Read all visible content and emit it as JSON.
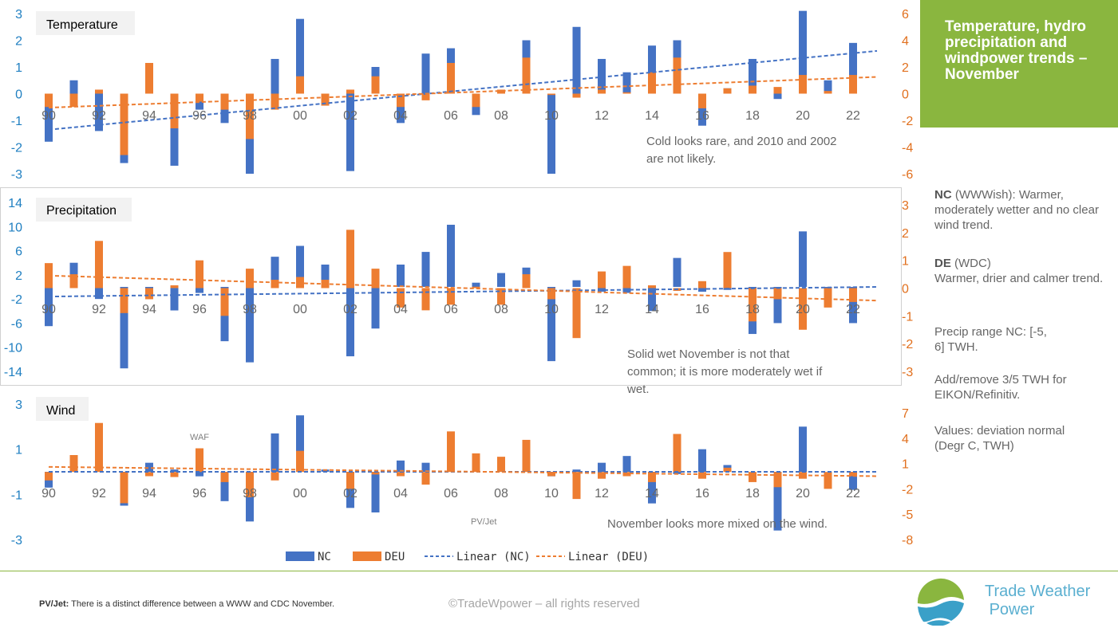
{
  "title_box": {
    "text": "Temperature, hydro precipitation and windpower trends – November"
  },
  "sidebar": {
    "nc_label": "NC",
    "nc_text": " (WWWish): Warmer, moderately wetter and no clear wind trend.",
    "de_label": "DE",
    "de_text": " (WDC)",
    "de_text2": "Warmer, drier and calmer trend.",
    "precip_range": "Precip range NC: [-5, 6] TWH.",
    "add_remove": "Add/remove 3/5 TWH for EIKON/Refinitiv.",
    "values_note": "Values: deviation normal (Degr C, TWH)"
  },
  "footer": {
    "pvjet_label": "PV/Jet:",
    "pvjet_text": " There is a distinct difference between a WWW and CDC November.",
    "copyright": "©TradeWpower – all rights reserved",
    "brand_line1": "Trade Weather",
    "brand_line2": "Power"
  },
  "legend": {
    "nc": "NC",
    "deu": "DEU",
    "lin_nc": "Linear (NC)",
    "lin_deu": "Linear (DEU)"
  },
  "colors": {
    "nc": "#4472c4",
    "deu": "#ed7d31",
    "accent": "#8ab63f",
    "left_axis": "#1f7fc1",
    "right_axis": "#e1701e"
  },
  "chart_data": [
    {
      "type": "bar",
      "title": "Temperature",
      "x_tick_labels": [
        "90",
        "92",
        "94",
        "96",
        "98",
        "00",
        "02",
        "04",
        "06",
        "08",
        "10",
        "12",
        "14",
        "16",
        "18",
        "20",
        "22"
      ],
      "years": [
        "90",
        "91",
        "92",
        "93",
        "94",
        "95",
        "96",
        "97",
        "98",
        "99",
        "00",
        "01",
        "02",
        "03",
        "04",
        "05",
        "06",
        "07",
        "08",
        "09",
        "10",
        "11",
        "12",
        "13",
        "14",
        "15",
        "16",
        "17",
        "18",
        "19",
        "20",
        "21",
        "22"
      ],
      "left_ticks": [
        "3",
        "2",
        "1",
        "0",
        "-1",
        "-2",
        "-3"
      ],
      "right_ticks": [
        "6",
        "4",
        "2",
        "0",
        "-2",
        "-4",
        "-6"
      ],
      "ylim_left": [
        -3,
        3
      ],
      "ylim_right": [
        -6,
        6
      ],
      "series": [
        {
          "name": "NC",
          "axis": "left",
          "values": [
            -1.8,
            0.5,
            -1.4,
            -2.6,
            0.0,
            -2.7,
            -0.6,
            -1.1,
            -3.0,
            1.3,
            2.8,
            -0.4,
            -2.9,
            1.0,
            -1.1,
            1.5,
            1.7,
            -0.8,
            0.1,
            2.0,
            -3.0,
            2.5,
            1.3,
            0.8,
            1.8,
            2.0,
            -1.2,
            0.2,
            1.3,
            -0.2,
            3.1,
            0.5,
            1.9
          ]
        },
        {
          "name": "DEU",
          "axis": "right",
          "values": [
            -1.0,
            -1.0,
            0.3,
            -4.6,
            2.3,
            -2.6,
            -0.6,
            -1.2,
            -3.4,
            -1.2,
            1.3,
            -0.9,
            0.3,
            1.3,
            -1.0,
            -0.5,
            2.3,
            -1.0,
            0.3,
            2.7,
            -0.1,
            -0.3,
            0.3,
            0.1,
            1.6,
            2.7,
            -1.1,
            0.4,
            0.6,
            0.5,
            1.4,
            0.2,
            1.4
          ]
        }
      ],
      "trend": {
        "nc": [
          -1.35,
          1.6
        ],
        "deu_right": [
          -1.05,
          1.25
        ]
      },
      "annotation": "Cold looks rare, and 2010 and 2002",
      "annotation2": "are not likely."
    },
    {
      "type": "bar",
      "title": "Precipitation",
      "x_tick_labels": [
        "90",
        "92",
        "94",
        "96",
        "98",
        "00",
        "02",
        "04",
        "06",
        "08",
        "10",
        "12",
        "14",
        "16",
        "18",
        "20",
        "22"
      ],
      "years": [
        "90",
        "91",
        "92",
        "93",
        "94",
        "95",
        "96",
        "97",
        "98",
        "99",
        "00",
        "01",
        "02",
        "03",
        "04",
        "05",
        "06",
        "07",
        "08",
        "09",
        "10",
        "11",
        "12",
        "13",
        "14",
        "15",
        "16",
        "17",
        "18",
        "19",
        "20",
        "21",
        "22"
      ],
      "left_ticks": [
        "14",
        "10",
        "6",
        "2",
        "-2",
        "-6",
        "-10",
        "-14"
      ],
      "right_ticks": [
        "3",
        "2",
        "1",
        "0",
        "-1",
        "-2",
        "-3"
      ],
      "ylim_left": [
        -14,
        14
      ],
      "ylim_right": [
        -3,
        3
      ],
      "series": [
        {
          "name": "NC",
          "axis": "left",
          "values": [
            -6.5,
            4.0,
            -2.0,
            -13.5,
            -2.0,
            -3.9,
            -1.0,
            -9.0,
            -12.5,
            5.0,
            6.8,
            3.7,
            -11.5,
            -6.9,
            3.7,
            5.8,
            10.3,
            0.7,
            2.3,
            3.2,
            -12.3,
            1.1,
            -0.8,
            -1.0,
            -4.0,
            4.8,
            -0.8,
            -0.5,
            -7.8,
            -6.0,
            9.2,
            -0.5,
            -6.0
          ]
        },
        {
          "name": "DEU",
          "axis": "right",
          "values": [
            0.9,
            0.5,
            1.7,
            -0.9,
            -0.4,
            0.1,
            1.0,
            -1.0,
            0.7,
            0.3,
            0.4,
            0.3,
            2.1,
            0.7,
            -0.7,
            -0.8,
            -0.6,
            0.05,
            -0.6,
            0.5,
            -0.4,
            -1.8,
            0.6,
            0.8,
            0.1,
            -0.1,
            0.25,
            1.3,
            -1.2,
            -0.4,
            -1.5,
            -0.7,
            -0.5
          ]
        }
      ],
      "trend": {
        "nc": [
          -1.6,
          0.0
        ],
        "deu_right": [
          0.45,
          -0.45
        ]
      },
      "annotation": "Solid wet November is not that",
      "annotation2": "common; it is more moderately wet if",
      "annotation3": "wet."
    },
    {
      "type": "bar",
      "title": "Wind",
      "x_tick_labels": [
        "90",
        "92",
        "94",
        "96",
        "98",
        "00",
        "02",
        "04",
        "06",
        "08",
        "10",
        "12",
        "14",
        "16",
        "18",
        "20",
        "22"
      ],
      "years": [
        "90",
        "91",
        "92",
        "93",
        "94",
        "95",
        "96",
        "97",
        "98",
        "99",
        "00",
        "01",
        "02",
        "03",
        "04",
        "05",
        "06",
        "07",
        "08",
        "09",
        "10",
        "11",
        "12",
        "13",
        "14",
        "15",
        "16",
        "17",
        "18",
        "19",
        "20",
        "21",
        "22"
      ],
      "left_ticks": [
        "3",
        "1",
        "-1",
        "-3"
      ],
      "right_ticks": [
        "7",
        "4",
        "1",
        "-2",
        "-5",
        "-8"
      ],
      "ylim_left": [
        -3,
        3
      ],
      "ylim_right": [
        -8,
        7
      ],
      "series": [
        {
          "name": "NC",
          "axis": "left",
          "values": [
            -0.7,
            0.3,
            0.0,
            -1.5,
            0.4,
            0.1,
            -0.2,
            -1.3,
            -2.2,
            1.7,
            2.5,
            0.1,
            -1.6,
            -1.8,
            0.5,
            0.4,
            0.9,
            0.0,
            0.3,
            0.0,
            -0.2,
            0.1,
            0.4,
            0.7,
            -1.4,
            -0.1,
            1.0,
            0.3,
            0.0,
            -2.6,
            2.0,
            0.0,
            -0.8
          ]
        },
        {
          "name": "DEU",
          "axis": "right",
          "values": [
            -1.0,
            2.0,
            5.8,
            -3.7,
            -0.5,
            -0.6,
            2.8,
            -1.2,
            -3.0,
            -1.0,
            2.5,
            0.0,
            -2.0,
            -0.3,
            -0.5,
            -1.5,
            4.8,
            2.2,
            1.8,
            3.8,
            -0.5,
            -3.2,
            -0.8,
            -0.5,
            -1.2,
            4.5,
            -0.8,
            0.5,
            -1.2,
            -1.8,
            -0.8,
            -2.0,
            -0.5
          ]
        }
      ],
      "trend": {
        "nc": [
          0.0,
          0.0
        ],
        "deu_right": [
          0.6,
          -0.5
        ]
      },
      "annotation": "November looks more mixed on the wind.",
      "label_waf": "WAF",
      "label_pvjet": "PV/Jet"
    }
  ]
}
